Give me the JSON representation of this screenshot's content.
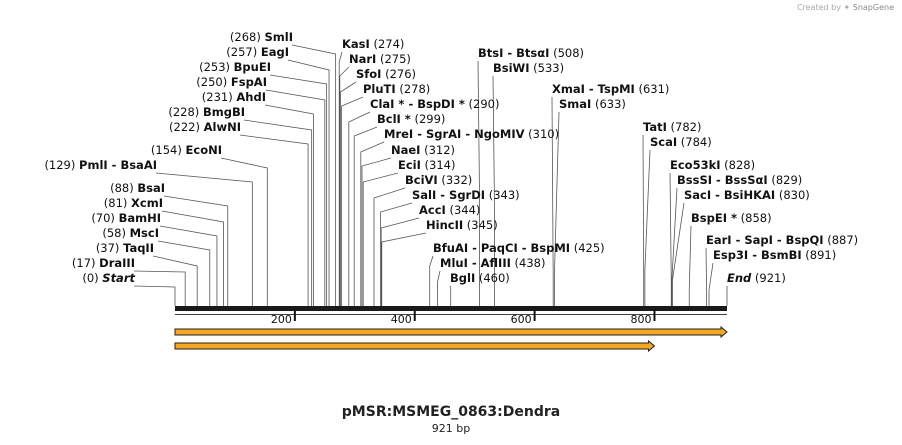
{
  "watermark": {
    "prefix": "Created by",
    "brand": "SnapGene"
  },
  "map": {
    "title": "pMSR:MSMEG_0863:Dendra",
    "length_label": "921 bp",
    "length": 921,
    "ticks": [
      200,
      400,
      600,
      800
    ],
    "features": [
      {
        "name": "feature-arrow-1",
        "start": 0,
        "end": 921,
        "color": "#f5a623"
      },
      {
        "name": "feature-arrow-2",
        "start": 0,
        "end": 800,
        "color": "#f5a623"
      }
    ],
    "sites": [
      {
        "pos": 0,
        "display": "(0)",
        "names": [
          "Start"
        ],
        "style": "italic",
        "tpos": "left"
      },
      {
        "pos": 17,
        "display": "(17)",
        "names": [
          "DraIII"
        ],
        "tpos": "left"
      },
      {
        "pos": 37,
        "display": "(37)",
        "names": [
          "TaqII"
        ],
        "tpos": "left"
      },
      {
        "pos": 58,
        "display": "(58)",
        "names": [
          "MscI"
        ],
        "tpos": "left"
      },
      {
        "pos": 70,
        "display": "(70)",
        "names": [
          "BamHI"
        ],
        "tpos": "left"
      },
      {
        "pos": 81,
        "display": "(81)",
        "names": [
          "XcmI"
        ],
        "tpos": "left"
      },
      {
        "pos": 88,
        "display": "(88)",
        "names": [
          "BsaI"
        ],
        "tpos": "left"
      },
      {
        "pos": 129,
        "display": "(129)",
        "names": [
          "PmlI",
          "BsaAI"
        ],
        "tpos": "left"
      },
      {
        "pos": 154,
        "display": "(154)",
        "names": [
          "EcoNI"
        ],
        "tpos": "left"
      },
      {
        "pos": 222,
        "display": "(222)",
        "names": [
          "AlwNI"
        ],
        "tpos": "left"
      },
      {
        "pos": 228,
        "display": "(228)",
        "names": [
          "BmgBI"
        ],
        "tpos": "left"
      },
      {
        "pos": 231,
        "display": "(231)",
        "names": [
          "AhdI"
        ],
        "tpos": "left"
      },
      {
        "pos": 250,
        "display": "(250)",
        "names": [
          "FspAI"
        ],
        "tpos": "left"
      },
      {
        "pos": 253,
        "display": "(253)",
        "names": [
          "BpuEI"
        ],
        "tpos": "left"
      },
      {
        "pos": 257,
        "display": "(257)",
        "names": [
          "EagI"
        ],
        "tpos": "left"
      },
      {
        "pos": 268,
        "display": "(268)",
        "names": [
          "SmlI"
        ],
        "tpos": "left"
      },
      {
        "pos": 274,
        "display": "(274)",
        "names": [
          "KasI"
        ],
        "tpos": "right"
      },
      {
        "pos": 275,
        "display": "(275)",
        "names": [
          "NarI"
        ],
        "tpos": "right"
      },
      {
        "pos": 276,
        "display": "(276)",
        "names": [
          "SfoI"
        ],
        "tpos": "right"
      },
      {
        "pos": 278,
        "display": "(278)",
        "names": [
          "PluTI"
        ],
        "tpos": "right"
      },
      {
        "pos": 290,
        "display": "(290)",
        "names": [
          "ClaI *",
          "BspDI *"
        ],
        "tpos": "right"
      },
      {
        "pos": 299,
        "display": "(299)",
        "names": [
          "BclI *"
        ],
        "tpos": "right"
      },
      {
        "pos": 310,
        "display": "(310)",
        "names": [
          "MreI",
          "SgrAI",
          "NgoMIV"
        ],
        "tpos": "right"
      },
      {
        "pos": 312,
        "display": "(312)",
        "names": [
          "NaeI"
        ],
        "tpos": "right"
      },
      {
        "pos": 314,
        "display": "(314)",
        "names": [
          "EciI"
        ],
        "tpos": "right"
      },
      {
        "pos": 332,
        "display": "(332)",
        "names": [
          "BciVI"
        ],
        "tpos": "right"
      },
      {
        "pos": 343,
        "display": "(343)",
        "names": [
          "SalI",
          "SgrDI"
        ],
        "tpos": "right"
      },
      {
        "pos": 344,
        "display": "(344)",
        "names": [
          "AccI"
        ],
        "tpos": "right"
      },
      {
        "pos": 345,
        "display": "(345)",
        "names": [
          "HincII"
        ],
        "tpos": "right"
      },
      {
        "pos": 425,
        "display": "(425)",
        "names": [
          "BfuAI",
          "PaqCI",
          "BspMI"
        ],
        "tpos": "right"
      },
      {
        "pos": 438,
        "display": "(438)",
        "names": [
          "MluI",
          "AflIII"
        ],
        "tpos": "right"
      },
      {
        "pos": 460,
        "display": "(460)",
        "names": [
          "BglI"
        ],
        "tpos": "right"
      },
      {
        "pos": 508,
        "display": "(508)",
        "names": [
          "BtsI",
          "BtsαI"
        ],
        "tpos": "right"
      },
      {
        "pos": 533,
        "display": "(533)",
        "names": [
          "BsiWI"
        ],
        "tpos": "right"
      },
      {
        "pos": 631,
        "display": "(631)",
        "names": [
          "XmaI",
          "TspMI"
        ],
        "tpos": "right"
      },
      {
        "pos": 633,
        "display": "(633)",
        "names": [
          "SmaI"
        ],
        "tpos": "right"
      },
      {
        "pos": 782,
        "display": "(782)",
        "names": [
          "TatI"
        ],
        "tpos": "right"
      },
      {
        "pos": 784,
        "display": "(784)",
        "names": [
          "ScaI"
        ],
        "tpos": "right"
      },
      {
        "pos": 828,
        "display": "(828)",
        "names": [
          "Eco53kI"
        ],
        "tpos": "right"
      },
      {
        "pos": 829,
        "display": "(829)",
        "names": [
          "BssSI",
          "BssSαI"
        ],
        "tpos": "right"
      },
      {
        "pos": 830,
        "display": "(830)",
        "names": [
          "SacI",
          "BsiHKAI"
        ],
        "tpos": "right"
      },
      {
        "pos": 858,
        "display": "(858)",
        "names": [
          "BspEI *"
        ],
        "tpos": "right"
      },
      {
        "pos": 887,
        "display": "(887)",
        "names": [
          "EarI",
          "SapI",
          "BspQI"
        ],
        "tpos": "right"
      },
      {
        "pos": 891,
        "display": "(891)",
        "names": [
          "Esp3I",
          "BsmBI"
        ],
        "tpos": "right"
      },
      {
        "pos": 921,
        "display": "(921)",
        "names": [
          "End"
        ],
        "style": "italic",
        "tpos": "right"
      }
    ]
  }
}
